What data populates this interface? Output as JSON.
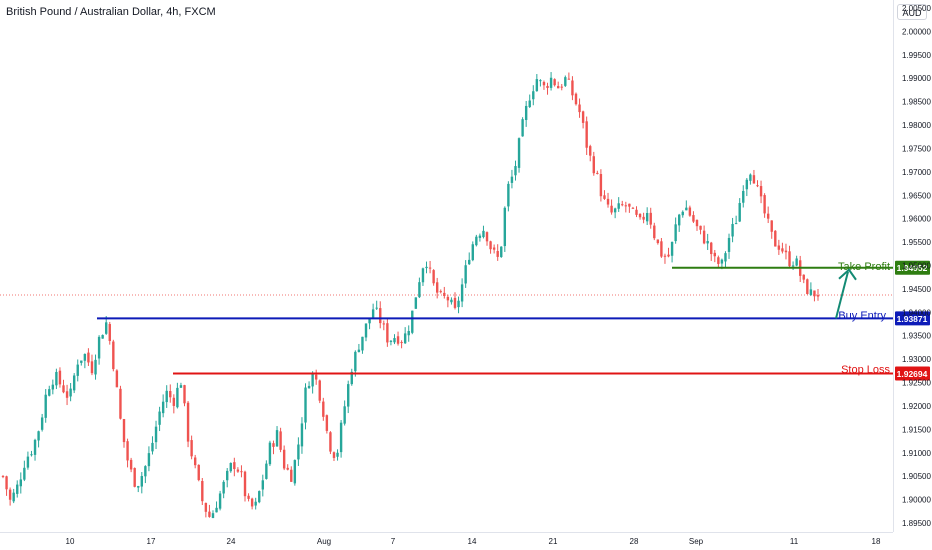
{
  "header": {
    "title": "British Pound / Australian Dollar, 4h, FXCM",
    "currency": "AUD"
  },
  "chart_data": {
    "type": "candlestick",
    "y_ticks": [
      "2.00500",
      "2.00000",
      "1.99500",
      "1.99000",
      "1.98500",
      "1.98000",
      "1.97500",
      "1.97000",
      "1.96500",
      "1.96000",
      "1.95500",
      "1.95000",
      "1.94500",
      "1.94000",
      "1.93500",
      "1.93000",
      "1.92500",
      "1.92000",
      "1.91500",
      "1.91000",
      "1.90500",
      "1.90000",
      "1.89500"
    ],
    "x_ticks": [
      "10",
      "17",
      "24",
      "Aug",
      "7",
      "14",
      "21",
      "28",
      "Sep",
      "11",
      "18"
    ],
    "ylim": [
      1.8935,
      2.0075
    ],
    "levels": [
      {
        "label": "Take Profit",
        "value": "1.94952",
        "color": "#2e7d11"
      },
      {
        "label": "Buy Entry",
        "value": "1.93871",
        "color": "#0d1bb8"
      },
      {
        "label": "Stop Loss",
        "value": "1.92694",
        "color": "#e01414"
      }
    ],
    "current_price": 1.9437,
    "colors": {
      "up": "#26a69a",
      "down": "#ef5350"
    },
    "closes_sampled": [
      1.905,
      1.8995,
      1.903,
      1.9085,
      1.911,
      1.916,
      1.924,
      1.9265,
      1.924,
      1.9215,
      1.9295,
      1.931,
      1.928,
      1.9345,
      1.938,
      1.928,
      1.915,
      1.907,
      1.903,
      1.906,
      1.911,
      1.918,
      1.923,
      1.921,
      1.9255,
      1.913,
      1.906,
      1.899,
      1.896,
      1.9,
      1.904,
      1.908,
      1.906,
      1.899,
      1.898,
      1.904,
      1.911,
      1.914,
      1.907,
      1.905,
      1.913,
      1.925,
      1.927,
      1.921,
      1.912,
      1.909,
      1.919,
      1.928,
      1.933,
      1.937,
      1.941,
      1.938,
      1.934,
      1.935,
      1.934,
      1.938,
      1.946,
      1.952,
      1.946,
      1.943,
      1.943,
      1.94,
      1.946,
      1.953,
      1.957,
      1.958,
      1.953,
      1.951,
      1.966,
      1.97,
      1.979,
      1.986,
      1.99,
      1.988,
      1.99,
      1.988,
      1.99,
      1.986,
      1.982,
      1.974,
      1.97,
      1.964,
      1.961,
      1.962,
      1.963,
      1.961,
      1.959,
      1.962,
      1.956,
      1.952,
      1.952,
      1.96,
      1.963,
      1.96,
      1.957,
      1.955,
      1.951,
      1.95,
      1.956,
      1.96,
      1.968,
      1.971,
      1.965,
      1.96,
      1.955,
      1.954,
      1.951,
      1.951,
      1.946,
      1.944,
      1.944
    ]
  }
}
